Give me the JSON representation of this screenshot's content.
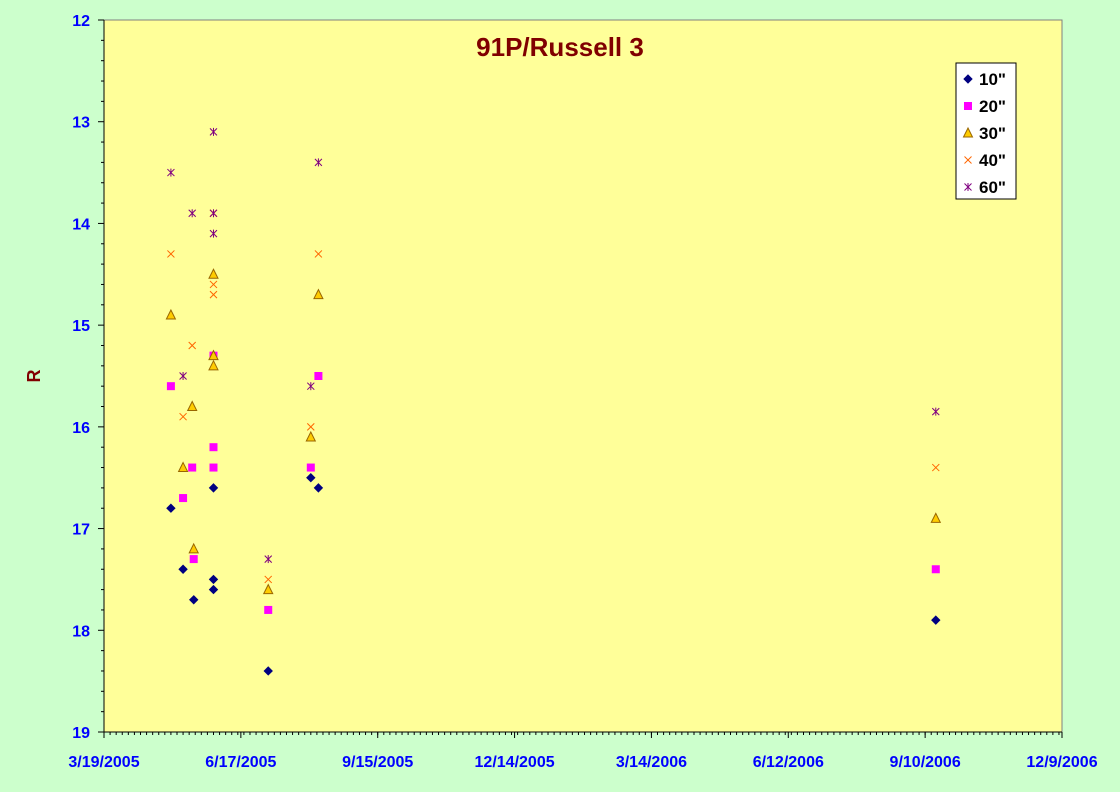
{
  "chart_data": {
    "type": "scatter",
    "title": "91P/Russell 3",
    "xlabel": "",
    "ylabel": "R",
    "x_axis": {
      "type": "date",
      "min": "2005-03-19",
      "max": "2006-12-09",
      "tick_labels": [
        "3/19/2005",
        "6/17/2005",
        "9/15/2005",
        "12/14/2005",
        "3/14/2006",
        "6/12/2006",
        "9/10/2006",
        "12/9/2006"
      ]
    },
    "y_axis": {
      "min": 12,
      "max": 19,
      "reversed": true,
      "tick_labels": [
        "12",
        "13",
        "14",
        "15",
        "16",
        "17",
        "18",
        "19"
      ]
    },
    "grid": false,
    "legend_position": "top-right",
    "colors": {
      "plot_background": "#ffff99",
      "outer_background": "#ccffcc",
      "tick_label": "#0000ff",
      "title": "#800000"
    },
    "series": [
      {
        "name": "10\"",
        "marker": "diamond",
        "color": "#000080",
        "points": [
          {
            "x": "2005-05-02",
            "y": 16.8
          },
          {
            "x": "2005-05-10",
            "y": 17.4
          },
          {
            "x": "2005-05-17",
            "y": 17.7
          },
          {
            "x": "2005-05-30",
            "y": 16.6
          },
          {
            "x": "2005-05-30",
            "y": 17.5
          },
          {
            "x": "2005-05-30",
            "y": 17.6
          },
          {
            "x": "2005-07-05",
            "y": 18.4
          },
          {
            "x": "2005-08-02",
            "y": 16.5
          },
          {
            "x": "2005-08-07",
            "y": 16.6
          },
          {
            "x": "2006-09-17",
            "y": 17.9
          }
        ]
      },
      {
        "name": "20\"",
        "marker": "square",
        "color": "#ff00ff",
        "points": [
          {
            "x": "2005-05-02",
            "y": 15.6
          },
          {
            "x": "2005-05-10",
            "y": 16.7
          },
          {
            "x": "2005-05-16",
            "y": 16.4
          },
          {
            "x": "2005-05-17",
            "y": 17.3
          },
          {
            "x": "2005-05-30",
            "y": 15.3
          },
          {
            "x": "2005-05-30",
            "y": 16.2
          },
          {
            "x": "2005-05-30",
            "y": 16.4
          },
          {
            "x": "2005-07-05",
            "y": 17.8
          },
          {
            "x": "2005-08-02",
            "y": 16.4
          },
          {
            "x": "2005-08-07",
            "y": 15.5
          },
          {
            "x": "2006-09-17",
            "y": 17.4
          }
        ]
      },
      {
        "name": "30\"",
        "marker": "triangle",
        "color": "#ffcc00",
        "points": [
          {
            "x": "2005-05-02",
            "y": 14.9
          },
          {
            "x": "2005-05-10",
            "y": 16.4
          },
          {
            "x": "2005-05-16",
            "y": 15.8
          },
          {
            "x": "2005-05-17",
            "y": 17.2
          },
          {
            "x": "2005-05-30",
            "y": 14.5
          },
          {
            "x": "2005-05-30",
            "y": 15.3
          },
          {
            "x": "2005-05-30",
            "y": 15.4
          },
          {
            "x": "2005-07-05",
            "y": 17.6
          },
          {
            "x": "2005-08-02",
            "y": 16.1
          },
          {
            "x": "2005-08-07",
            "y": 14.7
          },
          {
            "x": "2006-09-17",
            "y": 16.9
          }
        ]
      },
      {
        "name": "40\"",
        "marker": "x",
        "color": "#ff6600",
        "points": [
          {
            "x": "2005-05-02",
            "y": 14.3
          },
          {
            "x": "2005-05-10",
            "y": 15.9
          },
          {
            "x": "2005-05-16",
            "y": 15.2
          },
          {
            "x": "2005-05-30",
            "y": 13.9
          },
          {
            "x": "2005-05-30",
            "y": 14.6
          },
          {
            "x": "2005-05-30",
            "y": 14.7
          },
          {
            "x": "2005-07-05",
            "y": 17.5
          },
          {
            "x": "2005-08-02",
            "y": 16.0
          },
          {
            "x": "2005-08-07",
            "y": 14.3
          },
          {
            "x": "2006-09-17",
            "y": 16.4
          }
        ]
      },
      {
        "name": "60\"",
        "marker": "asterisk",
        "color": "#800080",
        "points": [
          {
            "x": "2005-05-02",
            "y": 13.5
          },
          {
            "x": "2005-05-10",
            "y": 15.5
          },
          {
            "x": "2005-05-16",
            "y": 13.9
          },
          {
            "x": "2005-05-30",
            "y": 13.1
          },
          {
            "x": "2005-05-30",
            "y": 13.9
          },
          {
            "x": "2005-05-30",
            "y": 14.1
          },
          {
            "x": "2005-07-05",
            "y": 17.3
          },
          {
            "x": "2005-08-02",
            "y": 15.6
          },
          {
            "x": "2005-08-07",
            "y": 13.4
          },
          {
            "x": "2006-09-17",
            "y": 15.85
          }
        ]
      }
    ]
  }
}
